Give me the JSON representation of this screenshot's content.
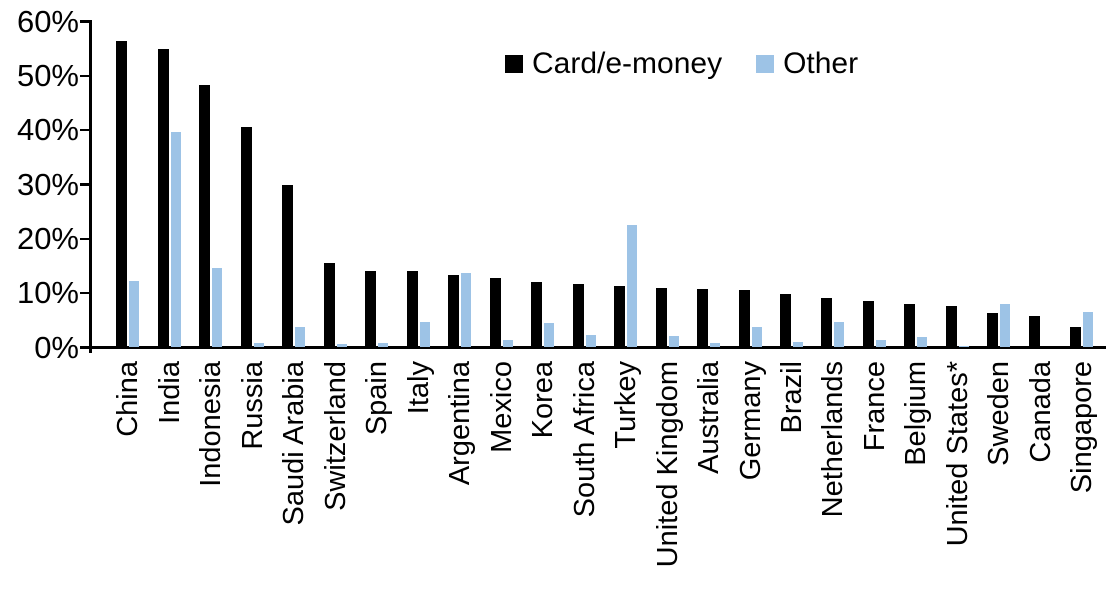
{
  "chart_data": {
    "type": "bar",
    "title": "",
    "xlabel": "",
    "ylabel": "",
    "ylim": [
      0,
      60
    ],
    "ytick_step": 10,
    "ytick_labels": [
      "0%",
      "10%",
      "20%",
      "30%",
      "40%",
      "50%",
      "60%"
    ],
    "grid": false,
    "legend_position": "top-center",
    "categories": [
      "China",
      "India",
      "Indonesia",
      "Russia",
      "Saudi Arabia",
      "Switzerland",
      "Spain",
      "Italy",
      "Argentina",
      "Mexico",
      "Korea",
      "South Africa",
      "Turkey",
      "United Kingdom",
      "Australia",
      "Germany",
      "Brazil",
      "Netherlands",
      "France",
      "Belgium",
      "United States*",
      "Sweden",
      "Canada",
      "Singapore"
    ],
    "series": [
      {
        "name": "Card/e-money",
        "color": "#000000",
        "values": [
          56.4,
          55.0,
          48.3,
          40.5,
          29.9,
          15.6,
          14.1,
          14.0,
          13.4,
          12.8,
          12.1,
          11.7,
          11.4,
          11.0,
          10.8,
          10.6,
          9.9,
          9.1,
          8.5,
          8.0,
          7.7,
          6.4,
          5.8,
          3.7
        ]
      },
      {
        "name": "Other",
        "color": "#9DC3E6",
        "values": [
          12.2,
          39.7,
          14.6,
          0.9,
          3.8,
          0.7,
          0.9,
          4.7,
          13.7,
          1.4,
          4.5,
          2.3,
          22.6,
          2.2,
          0.9,
          3.8,
          1.1,
          4.7,
          1.4,
          2.0,
          0.3,
          8.0,
          0.0,
          6.5
        ]
      }
    ]
  }
}
